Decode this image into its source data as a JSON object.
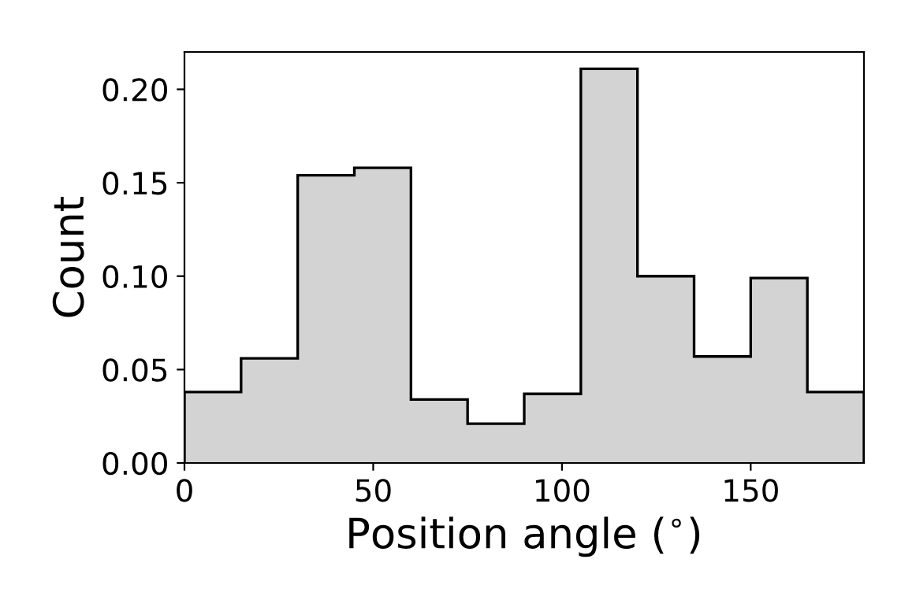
{
  "chart_data": {
    "type": "histogram",
    "xlabel": "Position angle ($^{∘}$)",
    "ylabel": "Count",
    "bins": [
      0,
      15,
      30,
      45,
      60,
      75,
      90,
      105,
      120,
      135,
      150,
      165,
      180
    ],
    "values": [
      0.038,
      0.056,
      0.154,
      0.158,
      0.034,
      0.021,
      0.037,
      0.211,
      0.1,
      0.057,
      0.099,
      0.038
    ],
    "color": "#d3d3d3",
    "xlim": [
      0,
      180
    ],
    "ylim": [
      0,
      0.22
    ],
    "xticks": [
      0,
      50,
      100,
      150
    ],
    "yticks": [
      {
        "value": 0,
        "label": "0.00"
      },
      {
        "value": 0.05,
        "label": "0.05"
      },
      {
        "value": 0.1,
        "label": "0.10"
      },
      {
        "value": 0.15,
        "label": "0.15"
      },
      {
        "value": 0.2,
        "label": "0.20"
      }
    ],
    "grid": false
  }
}
